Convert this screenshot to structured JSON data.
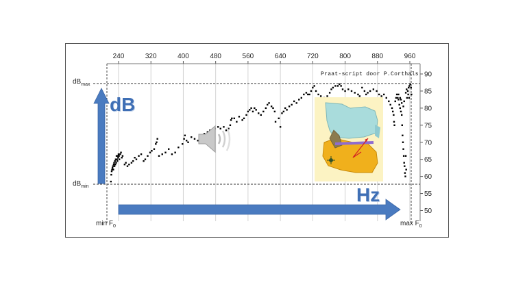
{
  "chart_data": {
    "type": "scatter",
    "title": "",
    "xlabel": "",
    "ylabel": "",
    "top_axis": {
      "ticks": [
        240,
        320,
        400,
        480,
        560,
        640,
        720,
        800,
        880,
        960
      ],
      "range": [
        205,
        985
      ]
    },
    "right_axis": {
      "ticks": [
        50,
        55,
        60,
        65,
        70,
        75,
        80,
        85,
        90
      ],
      "range": [
        46,
        92
      ]
    },
    "grid": "vertical",
    "left_labels": {
      "top_main": "dB",
      "top_sub": "max",
      "bottom_main": "dB",
      "bottom_sub": "min"
    },
    "bottom_labels": {
      "left_main": "min F",
      "left_sub": "0",
      "right_main": "max F",
      "right_sub": "0"
    },
    "arrow_labels": {
      "vertical": "dB",
      "horizontal": "Hz"
    },
    "credit": "Praat-script door P.Corthals",
    "points": [
      [
        221,
        58.5
      ],
      [
        222,
        60.5
      ],
      [
        223,
        61.5
      ],
      [
        224,
        62
      ],
      [
        225,
        62.5
      ],
      [
        226,
        63
      ],
      [
        227,
        62
      ],
      [
        228,
        63.5
      ],
      [
        229,
        64
      ],
      [
        230,
        63
      ],
      [
        231,
        64.5
      ],
      [
        232,
        63.5
      ],
      [
        233,
        65
      ],
      [
        234,
        64
      ],
      [
        235,
        66
      ],
      [
        236,
        65
      ],
      [
        237,
        64.5
      ],
      [
        238,
        66
      ],
      [
        239,
        65.5
      ],
      [
        240,
        66.5
      ],
      [
        241,
        66
      ],
      [
        242,
        65
      ],
      [
        244,
        66.5
      ],
      [
        246,
        67
      ],
      [
        248,
        65.5
      ],
      [
        250,
        66
      ],
      [
        255,
        63.5
      ],
      [
        258,
        64
      ],
      [
        262,
        63
      ],
      [
        266,
        63.5
      ],
      [
        272,
        64
      ],
      [
        276,
        64.5
      ],
      [
        280,
        65.5
      ],
      [
        284,
        65
      ],
      [
        290,
        66
      ],
      [
        296,
        66.5
      ],
      [
        302,
        64.5
      ],
      [
        306,
        65
      ],
      [
        312,
        66
      ],
      [
        318,
        67
      ],
      [
        322,
        67.5
      ],
      [
        328,
        68
      ],
      [
        332,
        69.5
      ],
      [
        334,
        70
      ],
      [
        336,
        71
      ],
      [
        340,
        66
      ],
      [
        348,
        66.5
      ],
      [
        356,
        67
      ],
      [
        364,
        68
      ],
      [
        372,
        66.5
      ],
      [
        380,
        67
      ],
      [
        388,
        68.5
      ],
      [
        398,
        69.5
      ],
      [
        402,
        71
      ],
      [
        404,
        72
      ],
      [
        408,
        70.5
      ],
      [
        412,
        70
      ],
      [
        420,
        71.5
      ],
      [
        428,
        71
      ],
      [
        436,
        70.5
      ],
      [
        444,
        72
      ],
      [
        452,
        72.5
      ],
      [
        460,
        73
      ],
      [
        466,
        73.5
      ],
      [
        470,
        72
      ],
      [
        478,
        74
      ],
      [
        486,
        74.5
      ],
      [
        492,
        74
      ],
      [
        500,
        74.5
      ],
      [
        506,
        73.5
      ],
      [
        512,
        74
      ],
      [
        516,
        75
      ],
      [
        518,
        76.5
      ],
      [
        520,
        77
      ],
      [
        526,
        77
      ],
      [
        532,
        76
      ],
      [
        538,
        77.5
      ],
      [
        546,
        76.5
      ],
      [
        550,
        77
      ],
      [
        556,
        78
      ],
      [
        560,
        79
      ],
      [
        564,
        79.5
      ],
      [
        568,
        80
      ],
      [
        572,
        79
      ],
      [
        576,
        80
      ],
      [
        580,
        79.5
      ],
      [
        586,
        78.5
      ],
      [
        592,
        78
      ],
      [
        598,
        79
      ],
      [
        604,
        80
      ],
      [
        608,
        81
      ],
      [
        612,
        81.5
      ],
      [
        618,
        80.5
      ],
      [
        622,
        80
      ],
      [
        626,
        79
      ],
      [
        628,
        76
      ],
      [
        636,
        77
      ],
      [
        640,
        74.5
      ],
      [
        644,
        78.5
      ],
      [
        648,
        79
      ],
      [
        652,
        80
      ],
      [
        656,
        79.5
      ],
      [
        662,
        80.5
      ],
      [
        668,
        81
      ],
      [
        674,
        82
      ],
      [
        680,
        81.5
      ],
      [
        686,
        82.5
      ],
      [
        692,
        83
      ],
      [
        698,
        84
      ],
      [
        704,
        84.5
      ],
      [
        708,
        84
      ],
      [
        712,
        84
      ],
      [
        716,
        85
      ],
      [
        720,
        86
      ],
      [
        724,
        86.5
      ],
      [
        728,
        85
      ],
      [
        734,
        84
      ],
      [
        740,
        83.5
      ],
      [
        748,
        83
      ],
      [
        756,
        83.5
      ],
      [
        762,
        84.5
      ],
      [
        766,
        85.5
      ],
      [
        770,
        86
      ],
      [
        776,
        86.5
      ],
      [
        782,
        86.5
      ],
      [
        786,
        87
      ],
      [
        790,
        86.5
      ],
      [
        794,
        85.5
      ],
      [
        800,
        85
      ],
      [
        808,
        85.5
      ],
      [
        816,
        85
      ],
      [
        824,
        84.5
      ],
      [
        832,
        84
      ],
      [
        836,
        83.5
      ],
      [
        842,
        86
      ],
      [
        848,
        85
      ],
      [
        852,
        84
      ],
      [
        856,
        84.5
      ],
      [
        862,
        85
      ],
      [
        870,
        85.5
      ],
      [
        878,
        85
      ],
      [
        884,
        84
      ],
      [
        890,
        83.5
      ],
      [
        896,
        84
      ],
      [
        902,
        83
      ],
      [
        908,
        82
      ],
      [
        912,
        81
      ],
      [
        916,
        80
      ],
      [
        918,
        79
      ],
      [
        920,
        78
      ],
      [
        921,
        76
      ],
      [
        922,
        75
      ],
      [
        924,
        82
      ],
      [
        926,
        83
      ],
      [
        928,
        84
      ],
      [
        930,
        83
      ],
      [
        932,
        82.5
      ],
      [
        934,
        81
      ],
      [
        936,
        80
      ],
      [
        938,
        79
      ],
      [
        940,
        78
      ],
      [
        941,
        75
      ],
      [
        942,
        72
      ],
      [
        943,
        70
      ],
      [
        944,
        68
      ],
      [
        945,
        66
      ],
      [
        946,
        64
      ],
      [
        947,
        63
      ],
      [
        948,
        61
      ],
      [
        949,
        60
      ],
      [
        950,
        66
      ],
      [
        951,
        62
      ],
      [
        953,
        83
      ],
      [
        955,
        85
      ],
      [
        957,
        86
      ],
      [
        959,
        86.5
      ],
      [
        961,
        87
      ],
      [
        963,
        86
      ],
      [
        964,
        84
      ],
      [
        932,
        84
      ],
      [
        936,
        83
      ],
      [
        938,
        82.5
      ],
      [
        940,
        81.5
      ],
      [
        944,
        80.5
      ],
      [
        946,
        82
      ],
      [
        950,
        84.5
      ],
      [
        952,
        85.5
      ],
      [
        956,
        84
      ],
      [
        958,
        83
      ]
    ]
  }
}
